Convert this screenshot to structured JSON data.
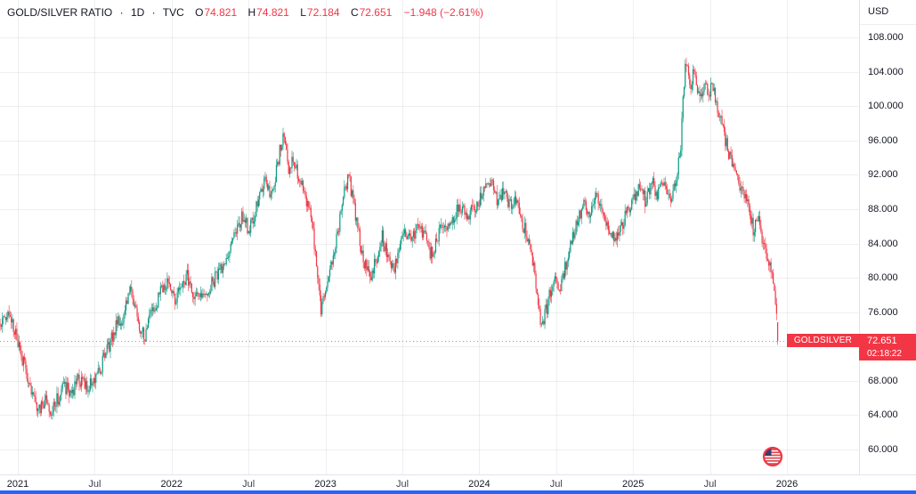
{
  "legend": {
    "symbol": "GOLD/SILVER RATIO",
    "separator": "·",
    "interval": "1D",
    "exchange": "TVC",
    "ohlc": [
      {
        "label": "O",
        "value": "74.821"
      },
      {
        "label": "H",
        "value": "74.821"
      },
      {
        "label": "L",
        "value": "72.184"
      },
      {
        "label": "C",
        "value": "72.651"
      }
    ],
    "change": "−1.948 (−2.61%)"
  },
  "price_axis": {
    "currency": "USD",
    "range": {
      "min": 60,
      "max": 108,
      "step": 4
    },
    "labels": [
      {
        "value": 108,
        "text": "108.000"
      },
      {
        "value": 104,
        "text": "104.000"
      },
      {
        "value": 100,
        "text": "100.000"
      },
      {
        "value": 96,
        "text": "96.000"
      },
      {
        "value": 92,
        "text": "92.000"
      },
      {
        "value": 88,
        "text": "88.000"
      },
      {
        "value": 84,
        "text": "84.000"
      },
      {
        "value": 80,
        "text": "80.000"
      },
      {
        "value": 76,
        "text": "76.000"
      },
      {
        "value": 68,
        "text": "68.000"
      },
      {
        "value": 64,
        "text": "64.000"
      },
      {
        "value": 60,
        "text": "60.000"
      }
    ]
  },
  "time_axis": {
    "labels": [
      {
        "text": "2021",
        "t": 2021.0,
        "major": true
      },
      {
        "text": "Jul",
        "t": 2021.5,
        "major": false
      },
      {
        "text": "2022",
        "t": 2022.0,
        "major": true
      },
      {
        "text": "Jul",
        "t": 2022.5,
        "major": false
      },
      {
        "text": "2023",
        "t": 2023.0,
        "major": true
      },
      {
        "text": "Jul",
        "t": 2023.5,
        "major": false
      },
      {
        "text": "2024",
        "t": 2024.0,
        "major": true
      },
      {
        "text": "Jul",
        "t": 2024.5,
        "major": false
      },
      {
        "text": "2025",
        "t": 2025.0,
        "major": true
      },
      {
        "text": "Jul",
        "t": 2025.5,
        "major": false
      },
      {
        "text": "2026",
        "t": 2026.0,
        "major": true
      }
    ]
  },
  "price_label": {
    "symbol": "GOLDSILVER",
    "price": "72.651",
    "countdown": "02:18:22"
  },
  "colors": {
    "up": "#089981",
    "down": "#F23645",
    "badge": "#F23645",
    "accent_blue": "#2962FF",
    "grid": "rgba(42,46,57,0.08)",
    "price_line": "#9598A1",
    "axis_text": "#131722"
  },
  "chart_data": {
    "type": "candlestick",
    "title": "GOLD/SILVER RATIO",
    "interval": "1D",
    "exchange": "TVC",
    "currency": "USD",
    "ylim": [
      60,
      108
    ],
    "grid": true,
    "legend_position": "top-left",
    "visible_t_range": [
      2020.885,
      2025.94
    ],
    "last_bar": {
      "open": 74.821,
      "high": 74.821,
      "low": 72.184,
      "close": 72.651,
      "change": -1.948,
      "change_pct": -2.61
    },
    "price_line_value": 72.651,
    "price_path": [
      [
        2020.88,
        74.5
      ],
      [
        2020.93,
        76.2
      ],
      [
        2020.98,
        74.0
      ],
      [
        2021.02,
        71.0
      ],
      [
        2021.06,
        69.0
      ],
      [
        2021.1,
        66.0
      ],
      [
        2021.14,
        64.3
      ],
      [
        2021.18,
        65.8
      ],
      [
        2021.22,
        64.6
      ],
      [
        2021.26,
        66.0
      ],
      [
        2021.3,
        67.3
      ],
      [
        2021.35,
        66.5
      ],
      [
        2021.4,
        68.2
      ],
      [
        2021.45,
        67.3
      ],
      [
        2021.5,
        68.0
      ],
      [
        2021.55,
        70.0
      ],
      [
        2021.6,
        72.5
      ],
      [
        2021.64,
        74.5
      ],
      [
        2021.68,
        75.3
      ],
      [
        2021.71,
        77.0
      ],
      [
        2021.74,
        78.8
      ],
      [
        2021.77,
        76.0
      ],
      [
        2021.8,
        74.0
      ],
      [
        2021.83,
        73.3
      ],
      [
        2021.86,
        75.5
      ],
      [
        2021.9,
        77.0
      ],
      [
        2021.94,
        78.8
      ],
      [
        2021.98,
        79.3
      ],
      [
        2022.02,
        77.5
      ],
      [
        2022.06,
        79.0
      ],
      [
        2022.1,
        80.3
      ],
      [
        2022.14,
        78.2
      ],
      [
        2022.18,
        77.2
      ],
      [
        2022.22,
        78.0
      ],
      [
        2022.26,
        79.3
      ],
      [
        2022.3,
        80.5
      ],
      [
        2022.34,
        81.8
      ],
      [
        2022.38,
        83.5
      ],
      [
        2022.42,
        85.5
      ],
      [
        2022.46,
        87.2
      ],
      [
        2022.5,
        85.6
      ],
      [
        2022.54,
        87.5
      ],
      [
        2022.58,
        90.0
      ],
      [
        2022.61,
        91.4
      ],
      [
        2022.64,
        89.8
      ],
      [
        2022.67,
        91.5
      ],
      [
        2022.7,
        94.5
      ],
      [
        2022.73,
        96.4
      ],
      [
        2022.76,
        92.5
      ],
      [
        2022.79,
        93.8
      ],
      [
        2022.82,
        92.0
      ],
      [
        2022.86,
        90.0
      ],
      [
        2022.9,
        87.5
      ],
      [
        2022.94,
        82.5
      ],
      [
        2022.97,
        76.2
      ],
      [
        2023.0,
        79.0
      ],
      [
        2023.04,
        82.0
      ],
      [
        2023.08,
        85.5
      ],
      [
        2023.12,
        89.5
      ],
      [
        2023.15,
        91.8
      ],
      [
        2023.18,
        89.0
      ],
      [
        2023.21,
        85.5
      ],
      [
        2023.25,
        82.0
      ],
      [
        2023.29,
        79.8
      ],
      [
        2023.33,
        82.0
      ],
      [
        2023.37,
        84.8
      ],
      [
        2023.41,
        82.0
      ],
      [
        2023.44,
        80.8
      ],
      [
        2023.48,
        83.0
      ],
      [
        2023.52,
        85.5
      ],
      [
        2023.56,
        84.0
      ],
      [
        2023.6,
        86.5
      ],
      [
        2023.64,
        85.0
      ],
      [
        2023.68,
        82.5
      ],
      [
        2023.72,
        84.0
      ],
      [
        2023.76,
        86.5
      ],
      [
        2023.8,
        85.8
      ],
      [
        2023.84,
        87.5
      ],
      [
        2023.88,
        88.2
      ],
      [
        2023.92,
        86.8
      ],
      [
        2023.96,
        88.0
      ],
      [
        2024.0,
        89.0
      ],
      [
        2024.04,
        90.2
      ],
      [
        2024.08,
        91.2
      ],
      [
        2024.12,
        89.0
      ],
      [
        2024.16,
        90.3
      ],
      [
        2024.2,
        88.5
      ],
      [
        2024.24,
        89.5
      ],
      [
        2024.28,
        86.5
      ],
      [
        2024.32,
        84.5
      ],
      [
        2024.36,
        80.5
      ],
      [
        2024.4,
        74.2
      ],
      [
        2024.44,
        76.5
      ],
      [
        2024.48,
        79.8
      ],
      [
        2024.52,
        78.5
      ],
      [
        2024.56,
        81.5
      ],
      [
        2024.6,
        84.5
      ],
      [
        2024.64,
        86.8
      ],
      [
        2024.68,
        88.8
      ],
      [
        2024.72,
        87.0
      ],
      [
        2024.76,
        89.3
      ],
      [
        2024.8,
        88.0
      ],
      [
        2024.84,
        86.0
      ],
      [
        2024.88,
        84.6
      ],
      [
        2024.92,
        86.0
      ],
      [
        2024.96,
        87.5
      ],
      [
        2025.0,
        88.8
      ],
      [
        2025.04,
        90.8
      ],
      [
        2025.08,
        88.9
      ],
      [
        2025.12,
        91.3
      ],
      [
        2025.16,
        89.6
      ],
      [
        2025.2,
        91.4
      ],
      [
        2025.24,
        88.9
      ],
      [
        2025.28,
        91.3
      ],
      [
        2025.31,
        95.5
      ],
      [
        2025.34,
        105.8
      ],
      [
        2025.37,
        102.0
      ],
      [
        2025.4,
        104.6
      ],
      [
        2025.43,
        100.8
      ],
      [
        2025.46,
        102.8
      ],
      [
        2025.49,
        101.3
      ],
      [
        2025.52,
        102.3
      ],
      [
        2025.55,
        99.2
      ],
      [
        2025.58,
        97.6
      ],
      [
        2025.62,
        94.6
      ],
      [
        2025.66,
        92.2
      ],
      [
        2025.7,
        90.2
      ],
      [
        2025.74,
        88.9
      ],
      [
        2025.78,
        85.6
      ],
      [
        2025.81,
        87.4
      ],
      [
        2025.84,
        84.6
      ],
      [
        2025.87,
        82.6
      ],
      [
        2025.9,
        80.6
      ],
      [
        2025.92,
        78.2
      ],
      [
        2025.94,
        74.8
      ]
    ]
  }
}
